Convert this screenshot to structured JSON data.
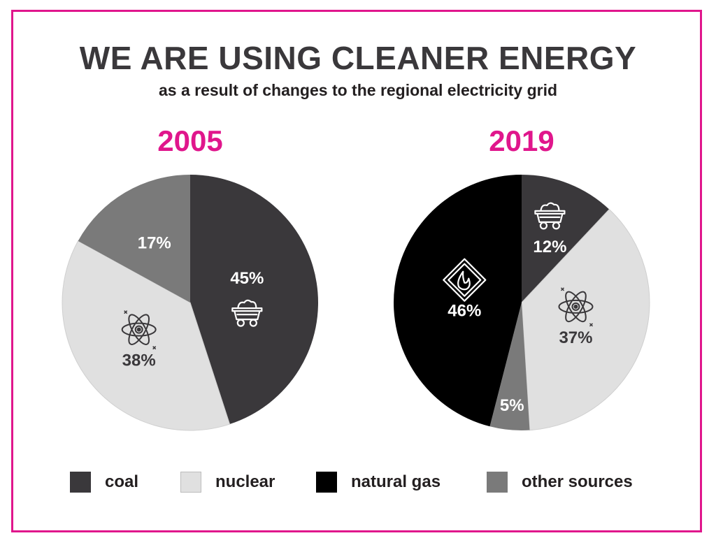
{
  "title": "WE ARE USING CLEANER ENERGY",
  "subtitle": "as a result of changes to the regional electricity grid",
  "colors": {
    "coal": "#3a383b",
    "nuclear": "#e0e0e0",
    "natural_gas": "#000000",
    "other_sources": "#7a7a7a",
    "accent": "#e0168c"
  },
  "legend": [
    {
      "key": "coal",
      "label": "coal"
    },
    {
      "key": "nuclear",
      "label": "nuclear"
    },
    {
      "key": "natural_gas",
      "label": "natural gas"
    },
    {
      "key": "other_sources",
      "label": "other sources"
    }
  ],
  "chart_data": [
    {
      "type": "pie",
      "title": "2005",
      "slices": [
        {
          "key": "coal",
          "label": "coal",
          "value": 45,
          "display": "45%",
          "icon": "coal-cart-icon"
        },
        {
          "key": "nuclear",
          "label": "nuclear",
          "value": 38,
          "display": "38%",
          "icon": "atom-icon"
        },
        {
          "key": "other_sources",
          "label": "other sources",
          "value": 17,
          "display": "17%",
          "icon": ""
        }
      ]
    },
    {
      "type": "pie",
      "title": "2019",
      "slices": [
        {
          "key": "coal",
          "label": "coal",
          "value": 12,
          "display": "12%",
          "icon": "coal-cart-icon"
        },
        {
          "key": "nuclear",
          "label": "nuclear",
          "value": 37,
          "display": "37%",
          "icon": "atom-icon"
        },
        {
          "key": "other_sources",
          "label": "other sources",
          "value": 5,
          "display": "5%",
          "icon": ""
        },
        {
          "key": "natural_gas",
          "label": "natural gas",
          "value": 46,
          "display": "46%",
          "icon": "flame-diamond-icon"
        }
      ]
    }
  ]
}
